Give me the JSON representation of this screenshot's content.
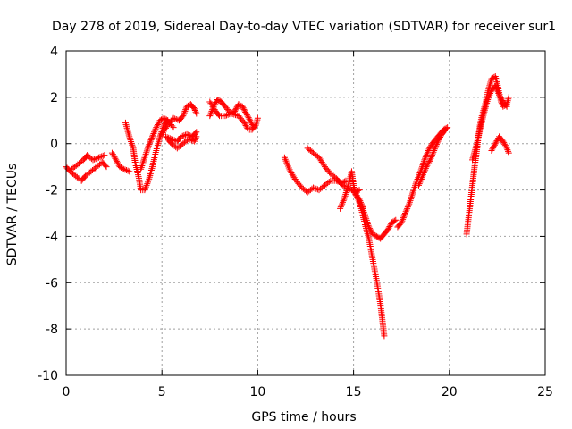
{
  "chart_data": {
    "type": "scatter",
    "title": "Day 278 of 2019, Sidereal Day-to-day VTEC variation (SDTVAR) for receiver sur1",
    "xlabel": "GPS time / hours",
    "ylabel": "SDTVAR / TECUs",
    "xlim": [
      0,
      25
    ],
    "ylim": [
      -10,
      4
    ],
    "xticks": [
      "0",
      "5",
      "10",
      "15",
      "20",
      "25"
    ],
    "yticks": [
      "4",
      "2",
      "0",
      "-2",
      "-4",
      "-6",
      "-8",
      "-10"
    ],
    "grid": true,
    "marker": "+",
    "color": "#ff0000",
    "segments": [
      [
        [
          0.0,
          -1.0
        ],
        [
          0.2,
          -1.2
        ],
        [
          0.5,
          -1.4
        ],
        [
          0.8,
          -1.6
        ],
        [
          1.0,
          -1.4
        ],
        [
          1.3,
          -1.2
        ],
        [
          1.6,
          -1.0
        ],
        [
          1.9,
          -0.8
        ],
        [
          2.1,
          -1.0
        ]
      ],
      [
        [
          0.3,
          -1.1
        ],
        [
          0.6,
          -0.9
        ],
        [
          0.9,
          -0.7
        ],
        [
          1.1,
          -0.5
        ],
        [
          1.4,
          -0.7
        ],
        [
          1.7,
          -0.6
        ],
        [
          2.0,
          -0.5
        ]
      ],
      [
        [
          2.4,
          -0.4
        ],
        [
          2.6,
          -0.7
        ],
        [
          2.8,
          -1.0
        ],
        [
          3.0,
          -1.1
        ],
        [
          3.3,
          -1.2
        ]
      ],
      [
        [
          3.1,
          0.9
        ],
        [
          3.3,
          0.3
        ],
        [
          3.5,
          -0.2
        ],
        [
          3.6,
          -0.8
        ],
        [
          3.8,
          -1.5
        ],
        [
          3.9,
          -2.0
        ],
        [
          4.1,
          -2.0
        ],
        [
          4.3,
          -1.6
        ],
        [
          4.5,
          -1.0
        ],
        [
          4.7,
          -0.3
        ],
        [
          4.9,
          0.3
        ],
        [
          5.1,
          0.8
        ],
        [
          5.3,
          1.0
        ]
      ],
      [
        [
          3.9,
          -1.1
        ],
        [
          4.1,
          -0.6
        ],
        [
          4.3,
          -0.1
        ],
        [
          4.5,
          0.3
        ],
        [
          4.7,
          0.7
        ],
        [
          4.9,
          1.0
        ],
        [
          5.1,
          1.1
        ],
        [
          5.3,
          1.0
        ],
        [
          5.6,
          0.7
        ]
      ],
      [
        [
          5.0,
          0.4
        ],
        [
          5.3,
          0.8
        ],
        [
          5.6,
          1.1
        ],
        [
          5.9,
          1.0
        ],
        [
          6.1,
          1.2
        ],
        [
          6.3,
          1.6
        ],
        [
          6.5,
          1.7
        ],
        [
          6.7,
          1.5
        ],
        [
          6.8,
          1.3
        ]
      ],
      [
        [
          5.2,
          0.3
        ],
        [
          5.5,
          0.2
        ],
        [
          5.8,
          0.1
        ],
        [
          6.0,
          0.3
        ],
        [
          6.3,
          0.4
        ],
        [
          6.6,
          0.3
        ],
        [
          6.8,
          0.5
        ]
      ],
      [
        [
          5.3,
          0.2
        ],
        [
          5.5,
          0.0
        ],
        [
          5.8,
          -0.2
        ],
        [
          6.1,
          0.0
        ],
        [
          6.4,
          0.2
        ],
        [
          6.7,
          0.1
        ],
        [
          6.8,
          0.3
        ]
      ],
      [
        [
          7.5,
          1.2
        ],
        [
          7.7,
          1.6
        ],
        [
          7.9,
          1.9
        ],
        [
          8.1,
          1.8
        ],
        [
          8.3,
          1.6
        ],
        [
          8.6,
          1.3
        ],
        [
          8.8,
          1.4
        ],
        [
          9.0,
          1.7
        ],
        [
          9.2,
          1.6
        ],
        [
          9.4,
          1.3
        ],
        [
          9.6,
          1.0
        ],
        [
          9.8,
          0.7
        ]
      ],
      [
        [
          7.5,
          1.8
        ],
        [
          7.8,
          1.4
        ],
        [
          8.0,
          1.2
        ],
        [
          8.3,
          1.2
        ],
        [
          8.6,
          1.3
        ],
        [
          9.0,
          1.2
        ],
        [
          9.3,
          0.9
        ],
        [
          9.5,
          0.6
        ],
        [
          9.7,
          0.6
        ],
        [
          9.9,
          0.8
        ],
        [
          10.0,
          1.1
        ]
      ],
      [
        [
          11.4,
          -0.6
        ],
        [
          11.7,
          -1.2
        ],
        [
          12.0,
          -1.6
        ],
        [
          12.3,
          -1.9
        ],
        [
          12.6,
          -2.1
        ],
        [
          12.9,
          -1.9
        ],
        [
          13.2,
          -2.0
        ],
        [
          13.5,
          -1.8
        ],
        [
          13.8,
          -1.6
        ],
        [
          14.1,
          -1.6
        ],
        [
          14.4,
          -1.7
        ],
        [
          14.6,
          -1.6
        ]
      ],
      [
        [
          12.6,
          -0.2
        ],
        [
          12.9,
          -0.4
        ],
        [
          13.2,
          -0.6
        ],
        [
          13.5,
          -1.0
        ],
        [
          13.8,
          -1.3
        ],
        [
          14.1,
          -1.5
        ],
        [
          14.3,
          -1.7
        ],
        [
          14.6,
          -1.9
        ],
        [
          14.9,
          -2.0
        ],
        [
          15.1,
          -2.1
        ],
        [
          15.3,
          -2.0
        ]
      ],
      [
        [
          14.3,
          -2.8
        ],
        [
          14.5,
          -2.4
        ],
        [
          14.7,
          -1.9
        ],
        [
          14.9,
          -1.2
        ],
        [
          15.0,
          -1.8
        ],
        [
          15.1,
          -2.2
        ],
        [
          15.3,
          -2.4
        ],
        [
          15.5,
          -2.8
        ]
      ],
      [
        [
          15.0,
          -1.9
        ],
        [
          15.2,
          -2.3
        ],
        [
          15.4,
          -2.8
        ],
        [
          15.6,
          -3.5
        ],
        [
          15.8,
          -4.1
        ],
        [
          16.0,
          -5.0
        ],
        [
          16.2,
          -5.9
        ],
        [
          16.4,
          -6.9
        ],
        [
          16.5,
          -7.6
        ],
        [
          16.6,
          -8.3
        ]
      ],
      [
        [
          15.4,
          -2.6
        ],
        [
          15.6,
          -3.1
        ],
        [
          15.8,
          -3.6
        ],
        [
          16.0,
          -3.9
        ],
        [
          16.2,
          -4.0
        ],
        [
          16.4,
          -4.1
        ],
        [
          16.6,
          -3.9
        ],
        [
          16.8,
          -3.7
        ],
        [
          17.0,
          -3.4
        ],
        [
          17.2,
          -3.3
        ]
      ],
      [
        [
          17.3,
          -3.6
        ],
        [
          17.5,
          -3.4
        ],
        [
          17.7,
          -3.0
        ],
        [
          17.9,
          -2.6
        ],
        [
          18.1,
          -2.1
        ],
        [
          18.3,
          -1.6
        ],
        [
          18.5,
          -1.2
        ],
        [
          18.7,
          -0.7
        ],
        [
          18.9,
          -0.3
        ],
        [
          19.1,
          0.0
        ],
        [
          19.3,
          0.2
        ],
        [
          19.5,
          0.4
        ],
        [
          19.7,
          0.6
        ],
        [
          19.9,
          0.7
        ]
      ],
      [
        [
          18.4,
          -1.8
        ],
        [
          18.6,
          -1.4
        ],
        [
          18.8,
          -1.0
        ],
        [
          19.0,
          -0.7
        ],
        [
          19.2,
          -0.3
        ],
        [
          19.4,
          0.1
        ],
        [
          19.6,
          0.4
        ],
        [
          19.8,
          0.6
        ]
      ],
      [
        [
          20.9,
          -3.9
        ],
        [
          21.0,
          -3.2
        ],
        [
          21.1,
          -2.5
        ],
        [
          21.2,
          -1.8
        ],
        [
          21.3,
          -1.1
        ],
        [
          21.4,
          -0.5
        ],
        [
          21.5,
          0.2
        ],
        [
          21.6,
          0.8
        ],
        [
          21.7,
          1.2
        ],
        [
          21.8,
          1.5
        ],
        [
          21.9,
          1.8
        ],
        [
          22.0,
          2.2
        ],
        [
          22.1,
          2.5
        ],
        [
          22.2,
          2.8
        ],
        [
          22.4,
          2.9
        ],
        [
          22.5,
          2.6
        ],
        [
          22.6,
          2.2
        ],
        [
          22.7,
          1.8
        ],
        [
          22.8,
          1.6
        ],
        [
          23.0,
          1.7
        ],
        [
          23.1,
          2.0
        ]
      ],
      [
        [
          21.2,
          -0.7
        ],
        [
          21.4,
          -0.1
        ],
        [
          21.6,
          0.6
        ],
        [
          21.8,
          1.3
        ],
        [
          22.0,
          1.9
        ],
        [
          22.2,
          2.3
        ],
        [
          22.4,
          2.5
        ],
        [
          22.6,
          2.1
        ],
        [
          22.8,
          1.8
        ],
        [
          23.0,
          1.6
        ]
      ],
      [
        [
          22.2,
          -0.3
        ],
        [
          22.4,
          0.0
        ],
        [
          22.6,
          0.3
        ],
        [
          22.8,
          0.1
        ],
        [
          23.0,
          -0.2
        ],
        [
          23.1,
          -0.4
        ]
      ]
    ]
  }
}
